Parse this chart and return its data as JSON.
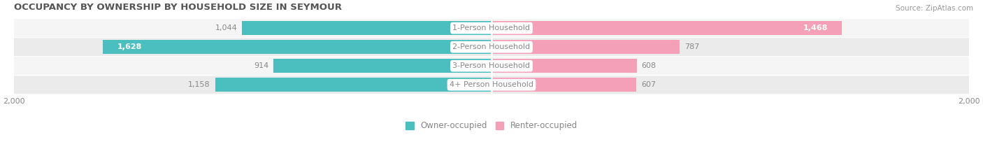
{
  "title": "OCCUPANCY BY OWNERSHIP BY HOUSEHOLD SIZE IN SEYMOUR",
  "source": "Source: ZipAtlas.com",
  "categories": [
    "1-Person Household",
    "2-Person Household",
    "3-Person Household",
    "4+ Person Household"
  ],
  "owner_values": [
    1044,
    1628,
    914,
    1158
  ],
  "renter_values": [
    1468,
    787,
    608,
    607
  ],
  "owner_color": "#4BBFBF",
  "renter_color": "#F4A0B8",
  "row_bg_light": "#F5F5F5",
  "row_bg_dark": "#EBEBEB",
  "axis_max": 2000,
  "label_outside_color": "#888888",
  "center_label_color": "#888888",
  "title_color": "#555555",
  "source_color": "#999999",
  "axis_label_color": "#888888",
  "legend_owner": "Owner-occupied",
  "legend_renter": "Renter-occupied",
  "figsize": [
    14.06,
    2.33
  ],
  "dpi": 100
}
